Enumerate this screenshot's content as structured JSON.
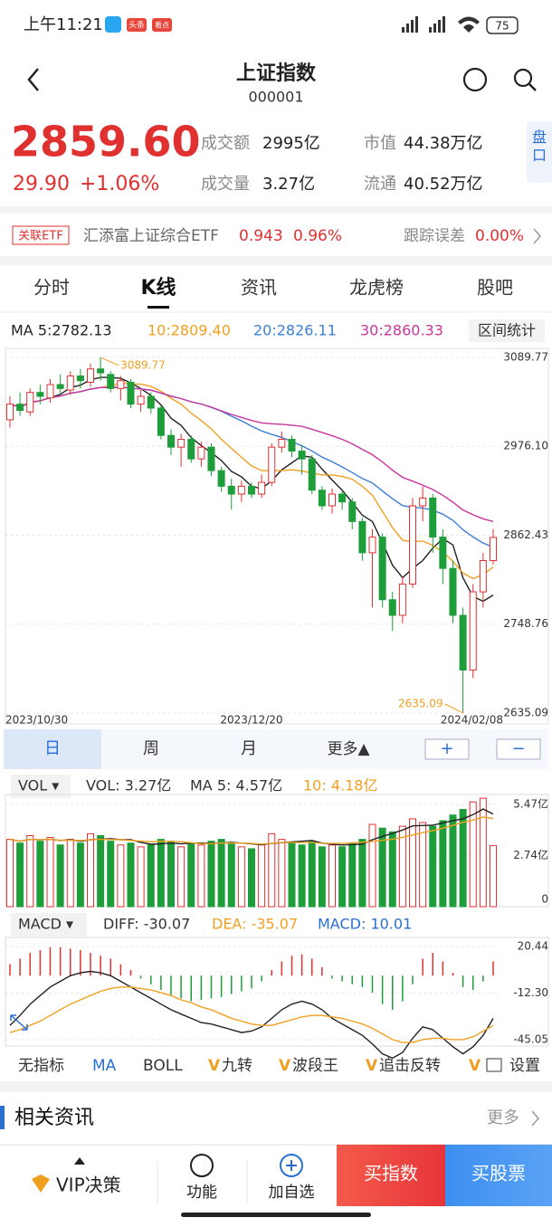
{
  "status": {
    "time": "上午11:21",
    "badge1": "头条",
    "badge2": "看点",
    "battery": "75"
  },
  "header": {
    "title": "上证指数",
    "code": "000001"
  },
  "quote": {
    "price": "2859.60",
    "change": "29.90",
    "pct": "+1.06%",
    "side": "盘口",
    "stats": [
      {
        "label": "成交额",
        "value": "2995亿"
      },
      {
        "label": "成交量",
        "value": "3.27亿"
      },
      {
        "label": "市值",
        "value": "44.38万亿"
      },
      {
        "label": "流通",
        "value": "40.52万亿"
      }
    ]
  },
  "etf": {
    "tag": "关联ETF",
    "name": "汇添富上证综合ETF",
    "price": "0.943",
    "pct": "0.96%",
    "track_label": "跟踪误差",
    "track": "0.00%"
  },
  "tabs": [
    "分时",
    "K线",
    "资讯",
    "龙虎榜",
    "股吧"
  ],
  "ma_legend": [
    {
      "label": "MA 5:2782.13",
      "color": "#222222"
    },
    {
      "label": "10:2809.40",
      "color": "#f0a020"
    },
    {
      "label": "20:2826.11",
      "color": "#3a7fd6"
    },
    {
      "label": "30:2860.33",
      "color": "#c8359c"
    }
  ],
  "range_button": "区间统计",
  "periods": [
    "日",
    "周",
    "月",
    "更多▲"
  ],
  "zoom_in": "+",
  "zoom_out": "−",
  "vol_legend": {
    "menu": "VOL ▾",
    "vol": "VOL: 3.27亿",
    "ma5": "MA 5: 4.57亿",
    "ma10": "10: 4.18亿"
  },
  "macd_legend": {
    "menu": "MACD ▾",
    "diff": "DIFF: -30.07",
    "dea": "DEA: -35.07",
    "macd": "MACD: 10.01"
  },
  "indicators": [
    "无指标",
    "MA",
    "BOLL"
  ],
  "v_badge": "V",
  "v_indicators": [
    "九转",
    "波段王",
    "追击反转"
  ],
  "settings": "设置",
  "news": {
    "title": "相关资讯",
    "more": "更多"
  },
  "bottom": {
    "vip": "VIP决策",
    "func": "功能",
    "add": "加自选",
    "buy_index": "买指数",
    "buy_stock": "买股票"
  },
  "chart_data": [
    {
      "type": "candlestick",
      "up_color": "#e03030",
      "down_color": "#1e9e3a",
      "categories": [
        "2023/10/30",
        null,
        null,
        null,
        null,
        null,
        null,
        null,
        null,
        null,
        null,
        null,
        null,
        null,
        null,
        null,
        null,
        null,
        null,
        null,
        null,
        null,
        null,
        null,
        "2023/12/20",
        null,
        null,
        null,
        null,
        null,
        null,
        null,
        null,
        null,
        null,
        null,
        null,
        null,
        null,
        null,
        null,
        null,
        null,
        null,
        null,
        null,
        null,
        null,
        "2024/02/08"
      ],
      "open": [
        3010,
        3030,
        3020,
        3045,
        3038,
        3055,
        3048,
        3066,
        3058,
        3075,
        3068,
        3050,
        3058,
        3030,
        3040,
        3025,
        2990,
        2975,
        2985,
        2960,
        2975,
        2945,
        2925,
        2915,
        2925,
        2915,
        2930,
        2975,
        2985,
        2970,
        2960,
        2920,
        2900,
        2915,
        2905,
        2880,
        2840,
        2860,
        2780,
        2760,
        2800,
        2900,
        2910,
        2860,
        2820,
        2760,
        2690,
        2790,
        2830
      ],
      "close": [
        3030,
        3022,
        3045,
        3040,
        3055,
        3050,
        3066,
        3060,
        3075,
        3070,
        3050,
        3060,
        3030,
        3040,
        3025,
        2990,
        2975,
        2985,
        2960,
        2975,
        2945,
        2925,
        2915,
        2925,
        2915,
        2930,
        2975,
        2985,
        2970,
        2960,
        2920,
        2900,
        2915,
        2905,
        2880,
        2840,
        2860,
        2780,
        2760,
        2800,
        2900,
        2910,
        2860,
        2820,
        2760,
        2690,
        2790,
        2830,
        2859.6
      ],
      "high": [
        3040,
        3045,
        3050,
        3055,
        3062,
        3068,
        3072,
        3075,
        3082,
        3089.77,
        3072,
        3066,
        3062,
        3048,
        3045,
        3028,
        2998,
        2992,
        2990,
        2982,
        2980,
        2950,
        2935,
        2932,
        2930,
        2940,
        2980,
        2995,
        2990,
        2978,
        2965,
        2925,
        2922,
        2920,
        2910,
        2885,
        2870,
        2865,
        2790,
        2810,
        2910,
        2925,
        2915,
        2870,
        2830,
        2770,
        2800,
        2840,
        2870
      ],
      "low": [
        3000,
        3015,
        3015,
        3030,
        3032,
        3044,
        3042,
        3050,
        3052,
        3060,
        3045,
        3035,
        3025,
        3020,
        3018,
        2985,
        2965,
        2950,
        2955,
        2950,
        2938,
        2918,
        2895,
        2905,
        2910,
        2910,
        2925,
        2968,
        2962,
        2940,
        2915,
        2895,
        2890,
        2895,
        2870,
        2830,
        2770,
        2770,
        2740,
        2750,
        2795,
        2880,
        2840,
        2800,
        2750,
        2635.09,
        2680,
        2770,
        2825
      ],
      "ylim": [
        2621.2,
        3101.3
      ],
      "yticks": [
        3089.77,
        {
          "value": 2976.1,
          "label": "2976.10"
        },
        2862.43,
        2748.76,
        2635.09
      ],
      "annotations": [
        "3089.77",
        "2635.09"
      ]
    },
    {
      "type": "bar",
      "ylim": [
        0,
        6.0
      ],
      "yticks": [
        {
          "value": 5.47,
          "label": "5.47亿"
        },
        {
          "value": 2.74,
          "label": "2.74亿"
        },
        0
      ],
      "values": [
        3.6,
        3.4,
        3.8,
        3.5,
        3.7,
        3.3,
        3.6,
        3.4,
        3.9,
        3.8,
        3.5,
        3.3,
        3.4,
        3.2,
        3.3,
        3.6,
        3.5,
        3.2,
        3.4,
        3.3,
        3.5,
        3.6,
        3.4,
        3.2,
        3.1,
        3.3,
        3.9,
        3.6,
        3.4,
        3.3,
        3.5,
        3.2,
        3.3,
        3.2,
        3.4,
        3.6,
        4.4,
        4.2,
        4.0,
        4.3,
        4.7,
        4.5,
        4.3,
        4.6,
        4.9,
        5.2,
        5.6,
        5.8,
        3.27
      ]
    },
    {
      "type": "macd",
      "ylim": [
        -49.5,
        26.9
      ],
      "yticks": [
        20.44,
        {
          "value": -12.3,
          "label": "-12.30"
        },
        -45.05
      ],
      "macd": [
        8,
        12,
        16,
        18,
        20,
        20,
        19,
        18,
        16,
        14,
        12,
        8,
        4,
        -2,
        -6,
        -10,
        -14,
        -16,
        -18,
        -17,
        -16,
        -15,
        -13,
        -11,
        -9,
        -4,
        4,
        10,
        14,
        15,
        12,
        6,
        -2,
        -4,
        -6,
        -8,
        -12,
        -20,
        -24,
        -18,
        -6,
        12,
        16,
        10,
        2,
        -8,
        -10,
        -4,
        10.01
      ],
      "diff": [
        -35,
        -28,
        -20,
        -14,
        -8,
        -4,
        0,
        2,
        3,
        2,
        0,
        -4,
        -8,
        -12,
        -16,
        -20,
        -24,
        -27,
        -30,
        -33,
        -34,
        -36,
        -38,
        -40,
        -39,
        -36,
        -30,
        -24,
        -20,
        -18,
        -20,
        -24,
        -30,
        -34,
        -38,
        -42,
        -48,
        -55,
        -58,
        -54,
        -44,
        -36,
        -38,
        -44,
        -50,
        -55,
        -50,
        -42,
        -30.07
      ],
      "dea": [
        -40,
        -38,
        -35,
        -32,
        -28,
        -24,
        -20,
        -17,
        -14,
        -11,
        -9,
        -8,
        -8,
        -9,
        -10,
        -12,
        -14,
        -17,
        -19,
        -22,
        -24,
        -27,
        -30,
        -32,
        -34,
        -35,
        -35,
        -33,
        -31,
        -29,
        -28,
        -28,
        -29,
        -30,
        -32,
        -34,
        -37,
        -41,
        -45,
        -47,
        -47,
        -45,
        -44,
        -44,
        -45,
        -45,
        -43,
        -39,
        -35.07
      ],
      "diff_color": "#222222",
      "dea_color": "#f0a020"
    }
  ]
}
